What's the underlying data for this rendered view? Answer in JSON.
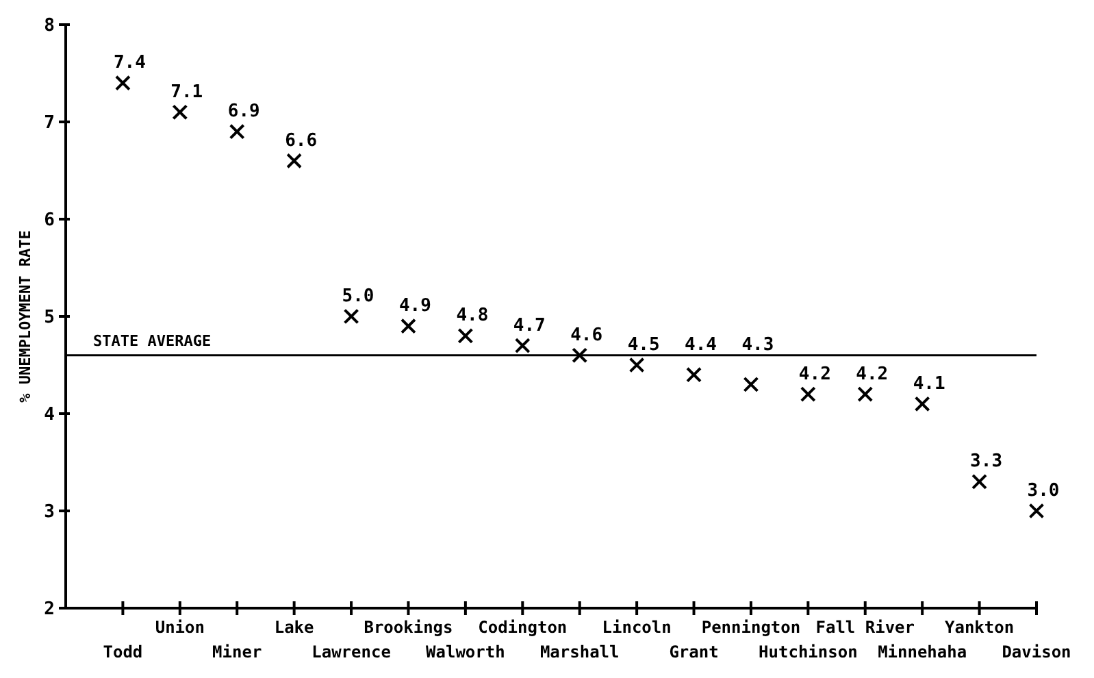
{
  "chart_data": {
    "type": "scatter",
    "ylabel": "% UNEMPLOYMENT RATE",
    "categories": [
      "Todd",
      "Union",
      "Miner",
      "Lake",
      "Lawrence",
      "Brookings",
      "Walworth",
      "Codington",
      "Marshall",
      "Lincoln",
      "Grant",
      "Pennington",
      "Hutchinson",
      "Fall River",
      "Minnehaha",
      "Yankton",
      "Davison"
    ],
    "values": [
      7.4,
      7.1,
      6.9,
      6.6,
      5.0,
      4.9,
      4.8,
      4.7,
      4.6,
      4.5,
      4.4,
      4.3,
      4.2,
      4.2,
      4.1,
      3.3,
      3.0
    ],
    "value_labels": [
      "7.4",
      "7.1",
      "6.9",
      "6.6",
      "5.0",
      "4.9",
      "4.8",
      "4.7",
      "4.6",
      "4.5",
      "4.4",
      "4.3",
      "4.2",
      "4.2",
      "4.1",
      "3.3",
      "3.0"
    ],
    "color": "#000000",
    "marker": "cross",
    "grid": false,
    "ylim": [
      2,
      8
    ],
    "yticks": [
      2,
      3,
      4,
      5,
      6,
      7,
      8
    ],
    "ref_lines": [
      {
        "axis": "y",
        "value": 4.6,
        "label": "STATE AVERAGE"
      }
    ]
  }
}
